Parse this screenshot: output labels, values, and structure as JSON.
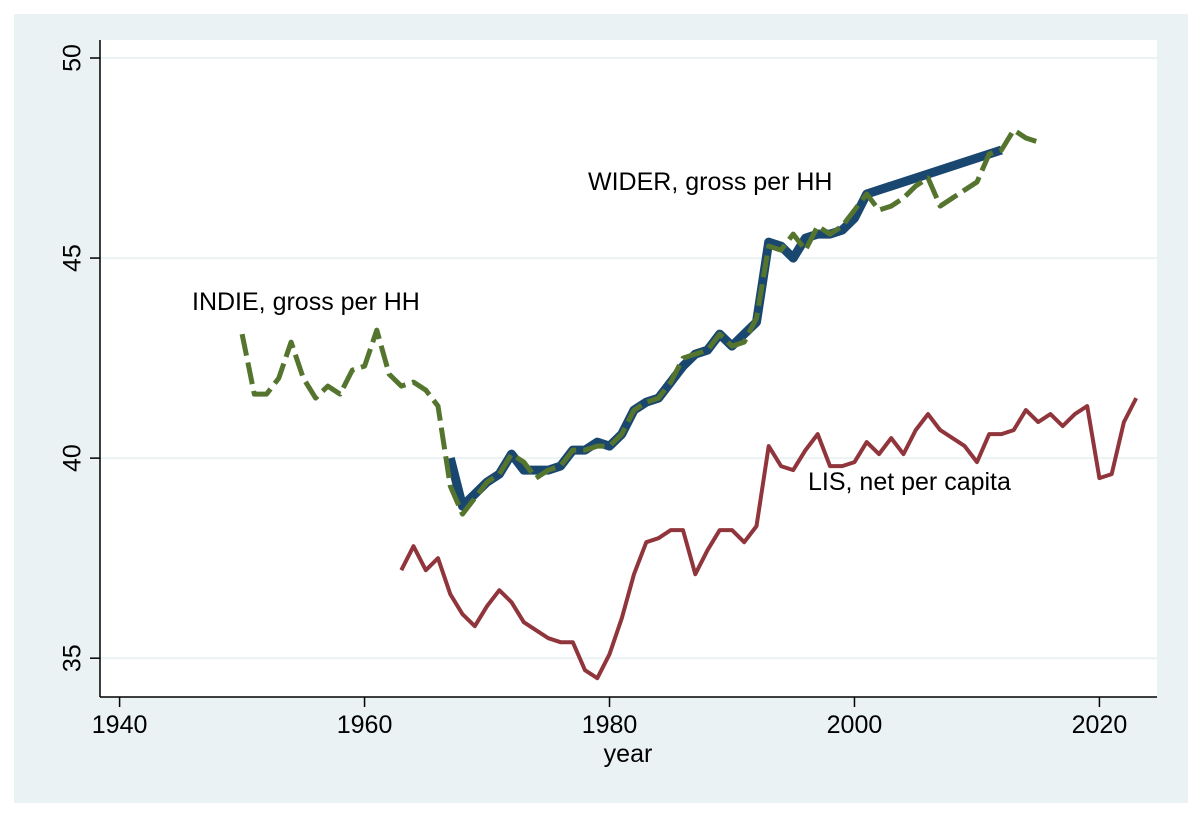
{
  "chart_data": {
    "type": "line",
    "x_label": "year",
    "xlim": [
      1938.4,
      2024.7
    ],
    "xticks": [
      1940,
      1960,
      1980,
      2000,
      2020
    ],
    "ylim": [
      34.03,
      50.45
    ],
    "yticks": [
      35,
      40,
      45,
      50
    ],
    "grid": true,
    "series": [
      {
        "name": "WIDER, gross per HH",
        "color": "#1a476f",
        "style": "solid",
        "x": [
          1967,
          1968,
          1969,
          1970,
          1971,
          1972,
          1973,
          1974,
          1975,
          1976,
          1977,
          1978,
          1979,
          1980,
          1981,
          1982,
          1983,
          1984,
          1985,
          1986,
          1987,
          1988,
          1989,
          1990,
          1991,
          1992,
          1993,
          1994,
          1995,
          1996,
          1997,
          1998,
          1999,
          2000,
          2001,
          2012
        ],
        "values": [
          40.0,
          38.8,
          39.1,
          39.4,
          39.6,
          40.1,
          39.7,
          39.7,
          39.7,
          39.8,
          40.2,
          40.2,
          40.4,
          40.3,
          40.6,
          41.2,
          41.4,
          41.5,
          41.9,
          42.3,
          42.6,
          42.7,
          43.1,
          42.8,
          43.1,
          43.4,
          45.4,
          45.3,
          45.0,
          45.5,
          45.6,
          45.6,
          45.7,
          46.0,
          46.6,
          47.7
        ]
      },
      {
        "name": "INDIE, gross per HH",
        "color": "#55752f",
        "style": "dash",
        "x": [
          1950,
          1951,
          1952,
          1953,
          1954,
          1955,
          1956,
          1957,
          1958,
          1959,
          1960,
          1961,
          1962,
          1963,
          1964,
          1965,
          1966,
          1967,
          1968,
          1969,
          1970,
          1971,
          1972,
          1973,
          1974,
          1975,
          1976,
          1977,
          1978,
          1979,
          1980,
          1981,
          1982,
          1983,
          1984,
          1985,
          1986,
          1987,
          1988,
          1989,
          1990,
          1991,
          1992,
          1993,
          1994,
          1995,
          1996,
          1997,
          1998,
          1999,
          2000,
          2001,
          2002,
          2003,
          2004,
          2005,
          2006,
          2007,
          2008,
          2009,
          2010,
          2011,
          2012,
          2013,
          2014,
          2015
        ],
        "values": [
          43.1,
          41.6,
          41.6,
          42.0,
          42.9,
          42.0,
          41.5,
          41.8,
          41.6,
          42.2,
          42.3,
          43.2,
          42.1,
          41.8,
          41.9,
          41.7,
          41.3,
          39.3,
          38.6,
          39.0,
          39.4,
          39.6,
          40.1,
          39.9,
          39.5,
          39.7,
          39.8,
          40.2,
          40.2,
          40.3,
          40.3,
          40.6,
          41.2,
          41.4,
          41.5,
          41.9,
          42.5,
          42.6,
          42.7,
          43.1,
          42.8,
          42.9,
          43.5,
          45.3,
          45.2,
          45.6,
          45.2,
          45.8,
          45.6,
          45.8,
          46.2,
          46.6,
          46.2,
          46.3,
          46.5,
          46.8,
          47.0,
          46.3,
          46.5,
          46.7,
          46.9,
          47.6,
          47.7,
          48.2,
          48.0,
          47.9
        ]
      },
      {
        "name": "LIS, net per capita",
        "color": "#90353b",
        "style": "solid",
        "x": [
          1963,
          1964,
          1965,
          1966,
          1967,
          1968,
          1969,
          1970,
          1971,
          1972,
          1973,
          1974,
          1975,
          1976,
          1977,
          1978,
          1979,
          1980,
          1981,
          1982,
          1983,
          1984,
          1985,
          1986,
          1987,
          1988,
          1989,
          1990,
          1991,
          1992,
          1993,
          1994,
          1995,
          1996,
          1997,
          1998,
          1999,
          2000,
          2001,
          2002,
          2003,
          2004,
          2005,
          2006,
          2007,
          2008,
          2009,
          2010,
          2011,
          2012,
          2013,
          2014,
          2015,
          2016,
          2017,
          2018,
          2019,
          2020,
          2021,
          2022,
          2023
        ],
        "values": [
          37.2,
          37.8,
          37.2,
          37.5,
          36.6,
          36.1,
          35.8,
          36.3,
          36.7,
          36.4,
          35.9,
          35.7,
          35.5,
          35.4,
          35.4,
          34.7,
          34.5,
          35.1,
          36.0,
          37.1,
          37.9,
          38.0,
          38.2,
          38.2,
          37.1,
          37.7,
          38.2,
          38.2,
          37.9,
          38.3,
          40.3,
          39.8,
          39.7,
          40.2,
          40.6,
          39.8,
          39.8,
          39.9,
          40.4,
          40.1,
          40.5,
          40.1,
          40.7,
          41.1,
          40.7,
          40.5,
          40.3,
          39.9,
          40.6,
          40.6,
          40.7,
          41.2,
          40.9,
          41.1,
          40.8,
          41.1,
          41.3,
          39.5,
          39.6,
          40.9,
          41.5
        ]
      }
    ]
  }
}
